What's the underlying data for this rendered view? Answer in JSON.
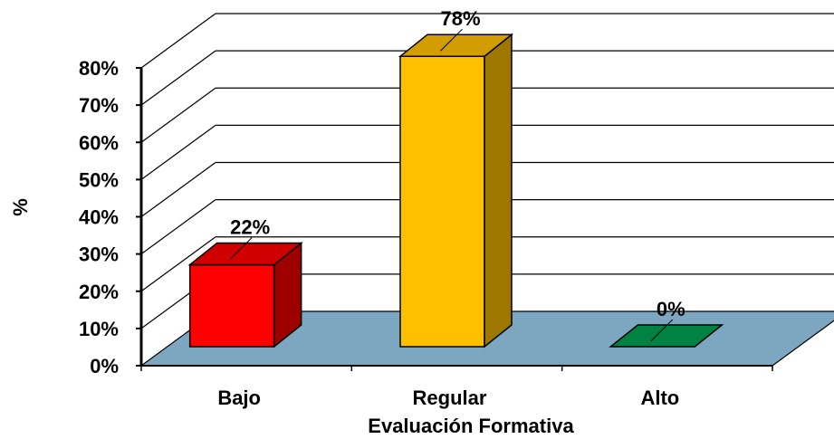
{
  "chart_data": {
    "type": "bar",
    "xlabel": "Evaluación Formativa",
    "ylabel": "%",
    "categories": [
      "Bajo",
      "Regular",
      "Alto"
    ],
    "values": [
      22,
      78,
      0
    ],
    "data_labels": [
      "22%",
      "78%",
      "0%"
    ],
    "ylim": [
      0,
      80
    ],
    "ytick_labels": [
      "0%",
      "10%",
      "20%",
      "30%",
      "40%",
      "50%",
      "60%",
      "70%",
      "80%"
    ],
    "grid": true,
    "legend": "none",
    "colors": [
      "#ff0000",
      "#ffc000",
      "#00a050"
    ],
    "floor_color": "#7da7c1"
  }
}
